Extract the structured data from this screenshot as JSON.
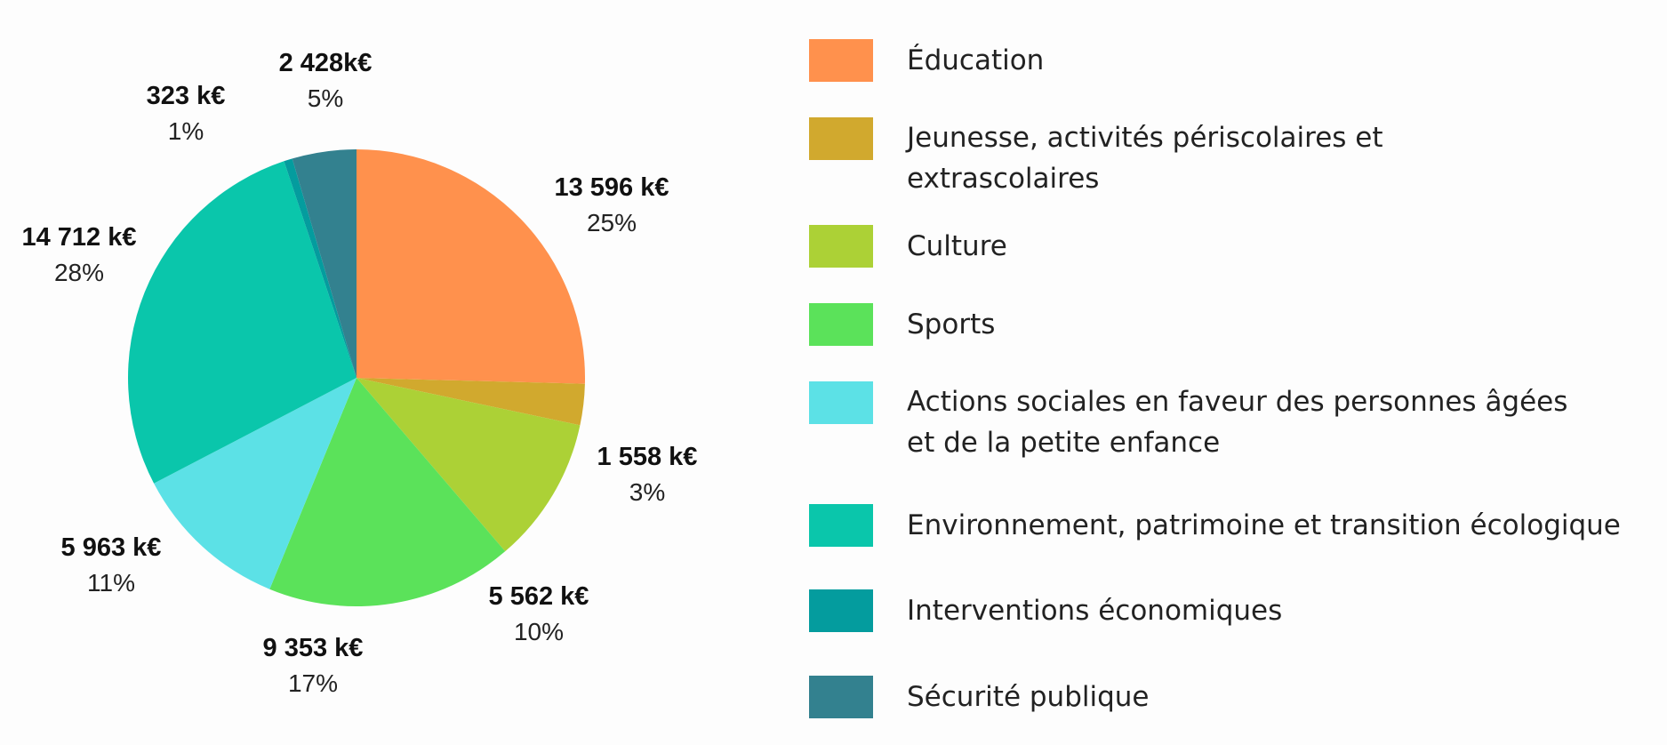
{
  "chart_data": {
    "type": "pie",
    "start": "top",
    "direction": "clockwise",
    "slices": [
      {
        "category": "Éducation",
        "value": 13596,
        "value_label": "13 596 k€",
        "percent_label": "25%",
        "color": "#FF914D"
      },
      {
        "category": "Jeunesse, activités périscolaires et extrascolaires",
        "value": 1558,
        "value_label": "1 558 k€",
        "percent_label": "3%",
        "color": "#D1A92E"
      },
      {
        "category": "Culture",
        "value": 5562,
        "value_label": "5 562 k€",
        "percent_label": "10%",
        "color": "#ACD136"
      },
      {
        "category": "Sports",
        "value": 9353,
        "value_label": "9 353 k€",
        "percent_label": "17%",
        "color": "#5BE25A"
      },
      {
        "category": "Actions sociales en faveur des personnes âgées et de la petite enfance",
        "value": 5963,
        "value_label": "5 963 k€",
        "percent_label": "11%",
        "color": "#5CE1E6"
      },
      {
        "category": "Environnement, patrimoine et transition écologique",
        "value": 14712,
        "value_label": "14 712 k€",
        "percent_label": "28%",
        "color": "#0AC6AB"
      },
      {
        "category": "Interventions économiques",
        "value": 323,
        "value_label": "323 k€",
        "percent_label": "1%",
        "color": "#049C9E"
      },
      {
        "category": "Sécurité publique",
        "value": 2428,
        "value_label": "2 428k€",
        "percent_label": "5%",
        "color": "#33818F"
      }
    ]
  },
  "legend": {
    "items": [
      {
        "label": "Éducation",
        "color": "#FF914D"
      },
      {
        "label": "Jeunesse, activités périscolaires et\nextrascolaires",
        "color": "#D1A92E"
      },
      {
        "label": "Culture",
        "color": "#ACD136"
      },
      {
        "label": "Sports",
        "color": "#5BE25A"
      },
      {
        "label": "Actions sociales en faveur des personnes âgées\net de la petite enfance",
        "color": "#5CE1E6"
      },
      {
        "label": "Environnement, patrimoine et transition écologique",
        "color": "#0AC6AB"
      },
      {
        "label": "Interventions économiques",
        "color": "#049C9E"
      },
      {
        "label": "Sécurité publique",
        "color": "#33818F"
      }
    ]
  }
}
